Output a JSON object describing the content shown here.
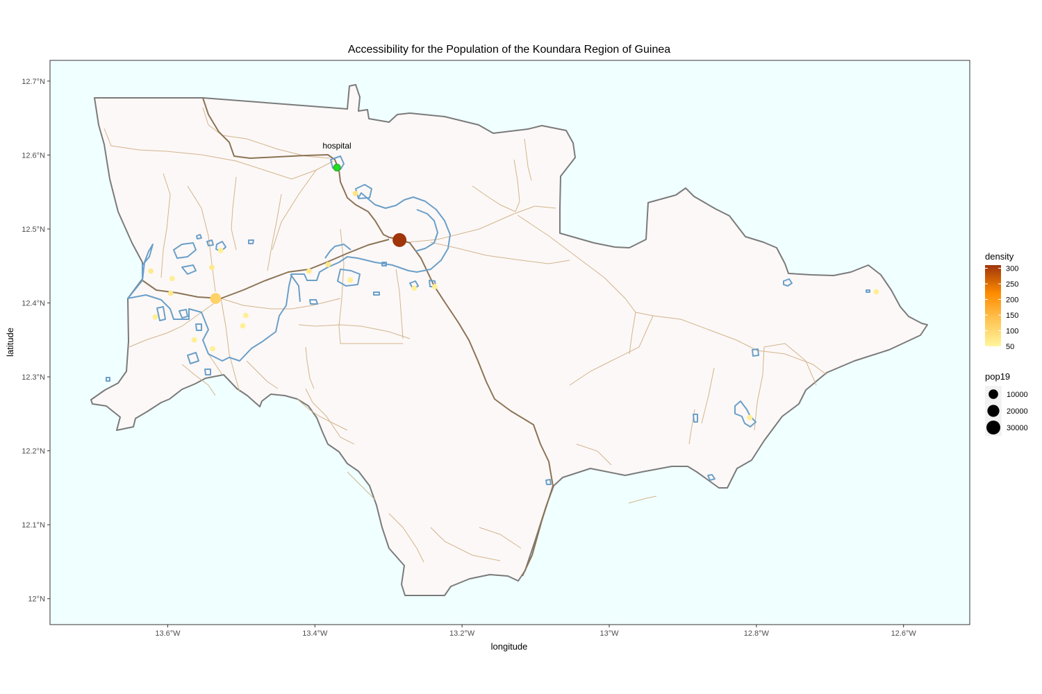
{
  "title": "Accessibility for the Population of the Koundara Region of Guinea",
  "xlabel": "longitude",
  "ylabel": "latitude",
  "colors": {
    "panel_bg": "#f0ffff",
    "region_fill": "#fcf8f7",
    "region_border": "#7a7a7a",
    "main_road": "#8b7355",
    "minor_road": "#d2b48c",
    "isochrone": "#6a9fc8",
    "hospital": "#22dd22",
    "density_low": "#fff59d",
    "density_mid": "#ff8c00",
    "density_high": "#a0350a"
  },
  "chart_data": {
    "type": "map",
    "title": "Accessibility for the Population of the Koundara Region of Guinea",
    "xlabel": "longitude",
    "ylabel": "latitude",
    "xlim": [
      -13.76,
      -12.51
    ],
    "ylim": [
      11.965,
      12.728
    ],
    "x_ticks": [
      {
        "value": -13.6,
        "label": "13.6°W"
      },
      {
        "value": -13.4,
        "label": "13.4°W"
      },
      {
        "value": -13.2,
        "label": "13.2°W"
      },
      {
        "value": -13.0,
        "label": "13°W"
      },
      {
        "value": -12.8,
        "label": "12.8°W"
      },
      {
        "value": -12.6,
        "label": "12.6°W"
      }
    ],
    "y_ticks": [
      {
        "value": 12.0,
        "label": "12°N"
      },
      {
        "value": 12.1,
        "label": "12.1°N"
      },
      {
        "value": 12.2,
        "label": "12.2°N"
      },
      {
        "value": 12.3,
        "label": "12.3°N"
      },
      {
        "value": 12.4,
        "label": "12.4°N"
      },
      {
        "value": 12.5,
        "label": "12.5°N"
      },
      {
        "value": 12.6,
        "label": "12.6°N"
      },
      {
        "value": 12.7,
        "label": "12.7°N"
      }
    ],
    "grid": false,
    "legend_position": "right",
    "hospital": {
      "label": "hospital",
      "lon": -13.37,
      "lat": 12.583
    },
    "settlements": [
      {
        "lon": -13.285,
        "lat": 12.485,
        "pop19": 30000,
        "density": 310
      },
      {
        "lon": -13.535,
        "lat": 12.406,
        "pop19": 15000,
        "density": 110
      },
      {
        "lon": -13.345,
        "lat": 12.548,
        "pop19": 1000,
        "density": 80
      },
      {
        "lon": -13.623,
        "lat": 12.443,
        "pop19": 1000,
        "density": 70
      },
      {
        "lon": -13.594,
        "lat": 12.433,
        "pop19": 1000,
        "density": 60
      },
      {
        "lon": -13.596,
        "lat": 12.413,
        "pop19": 1000,
        "density": 70
      },
      {
        "lon": -13.617,
        "lat": 12.381,
        "pop19": 1000,
        "density": 60
      },
      {
        "lon": -13.54,
        "lat": 12.448,
        "pop19": 1000,
        "density": 70
      },
      {
        "lon": -13.528,
        "lat": 12.471,
        "pop19": 1000,
        "density": 60
      },
      {
        "lon": -13.494,
        "lat": 12.383,
        "pop19": 1000,
        "density": 60
      },
      {
        "lon": -13.498,
        "lat": 12.369,
        "pop19": 1000,
        "density": 60
      },
      {
        "lon": -13.564,
        "lat": 12.35,
        "pop19": 1000,
        "density": 60
      },
      {
        "lon": -13.539,
        "lat": 12.338,
        "pop19": 1000,
        "density": 60
      },
      {
        "lon": -13.382,
        "lat": 12.452,
        "pop19": 1000,
        "density": 70
      },
      {
        "lon": -13.352,
        "lat": 12.431,
        "pop19": 1000,
        "density": 60
      },
      {
        "lon": -13.408,
        "lat": 12.443,
        "pop19": 1000,
        "density": 70
      },
      {
        "lon": -13.265,
        "lat": 12.42,
        "pop19": 1000,
        "density": 60
      },
      {
        "lon": -13.237,
        "lat": 12.422,
        "pop19": 1000,
        "density": 60
      },
      {
        "lon": -12.809,
        "lat": 12.245,
        "pop19": 1000,
        "density": 60
      },
      {
        "lon": -12.637,
        "lat": 12.415,
        "pop19": 1000,
        "density": 60
      }
    ],
    "legend_density": {
      "title": "density",
      "labels": [
        "300",
        "250",
        "200",
        "150",
        "100",
        "50"
      ],
      "values": [
        300,
        250,
        200,
        150,
        100,
        50
      ],
      "min": 50,
      "max": 310
    },
    "legend_pop19": {
      "title": "pop19",
      "labels": [
        "10000",
        "20000",
        "30000"
      ],
      "values": [
        10000,
        20000,
        30000
      ]
    }
  }
}
